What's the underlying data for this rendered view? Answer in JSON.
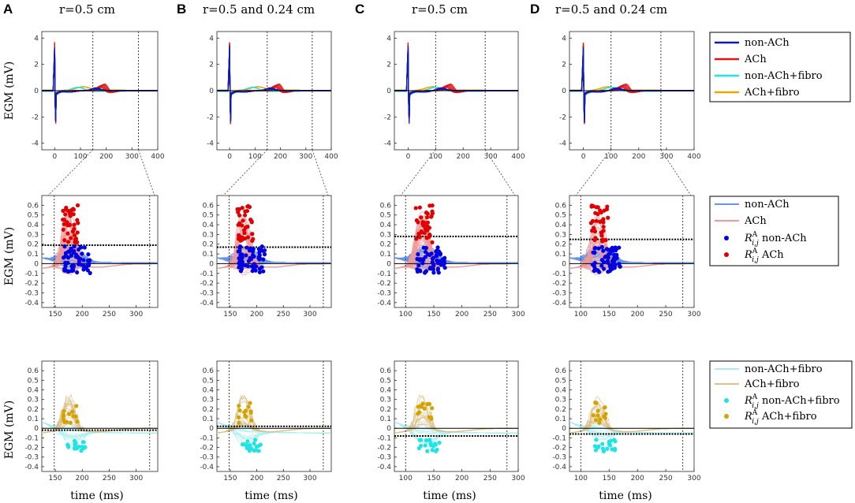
{
  "colors": {
    "nonach": "#0b1bbf",
    "ach": "#e01414",
    "nonach_fibro": "#1fe6e6",
    "ach_fibro": "#eea600",
    "nonach_light": "#6a93e8",
    "ach_light": "#f09a9a",
    "nonach_fibro_light": "#aaeef0",
    "ach_fibro_light": "#dcbf8a",
    "dot_nonach": "#0000e0",
    "dot_ach": "#e00000",
    "dot_nonach_fibro": "#1ee4e4",
    "dot_ach_fibro": "#d4a300"
  },
  "panels": [
    {
      "letter": "A",
      "title": "r=0.5 cm"
    },
    {
      "letter": "B",
      "title": "r=0.5 and 0.24 cm"
    },
    {
      "letter": "C",
      "title": "r=0.5 cm"
    },
    {
      "letter": "D",
      "title": "r=0.5 and 0.24 cm"
    }
  ],
  "axis_labels": {
    "egm": "EGM (mV)",
    "time": "time (ms)"
  },
  "legends": {
    "row1": [
      "non-ACh",
      "ACh",
      "non-ACh+fibro",
      "ACh+fibro"
    ],
    "row2": [
      {
        "label": "non-ACh",
        "kind": "line"
      },
      {
        "label": "ACh",
        "kind": "line"
      },
      {
        "label": " non-ACh",
        "kind": "dot",
        "sym": "R",
        "sup": "A",
        "sub": "i,j"
      },
      {
        "label": " ACh",
        "kind": "dot",
        "sym": "R",
        "sup": "A",
        "sub": "i,j"
      }
    ],
    "row3": [
      {
        "label": "non-ACh+fibro",
        "kind": "line"
      },
      {
        "label": "ACh+fibro",
        "kind": "line"
      },
      {
        "label": " non-ACh+fibro",
        "kind": "dot",
        "sym": "R",
        "sup": "A",
        "sub": "i,j"
      },
      {
        "label": " ACh+fibro",
        "kind": "dot",
        "sym": "R",
        "sup": "A",
        "sub": "i,j"
      }
    ]
  },
  "chart_data": [
    {
      "type": "line",
      "row": "full_egm",
      "xlim": [
        -50,
        400
      ],
      "ylim": [
        -4.5,
        4.5
      ],
      "xticks": [
        0,
        100,
        200,
        300,
        400
      ],
      "yticks": [
        -4,
        -2,
        0,
        2,
        4
      ],
      "series": [
        "non-ACh",
        "ACh",
        "non-ACh+fibro",
        "ACh+fibro"
      ],
      "windows": [
        [
          148,
          325
        ],
        [
          148,
          325
        ],
        [
          100,
          280
        ],
        [
          100,
          280
        ]
      ]
    },
    {
      "type": "scatter",
      "row": "zoom_no_fibro",
      "xlim_AB": [
        125,
        340
      ],
      "xlim_CD": [
        80,
        300
      ],
      "ylim": [
        -0.45,
        0.7
      ],
      "xticks_AB": [
        150,
        200,
        250,
        300
      ],
      "xticks_CD": [
        100,
        150,
        200,
        250,
        300
      ],
      "yticks": [
        -0.4,
        -0.3,
        -0.2,
        -0.1,
        0,
        0.1,
        0.2,
        0.3,
        0.4,
        0.5,
        0.6
      ],
      "threshold": [
        0.19,
        0.17,
        0.28,
        0.25
      ],
      "series": [
        "non-ACh",
        "ACh",
        "R non-ACh",
        "R ACh"
      ]
    },
    {
      "type": "scatter",
      "row": "zoom_fibro",
      "ylim": [
        -0.45,
        0.7
      ],
      "yticks": [
        -0.4,
        -0.3,
        -0.2,
        -0.1,
        0,
        0.1,
        0.2,
        0.3,
        0.4,
        0.5,
        0.6
      ],
      "threshold": [
        -0.02,
        0.02,
        -0.08,
        -0.06
      ],
      "series": [
        "non-ACh+fibro",
        "ACh+fibro",
        "R non-ACh+fibro",
        "R ACh+fibro"
      ]
    }
  ]
}
